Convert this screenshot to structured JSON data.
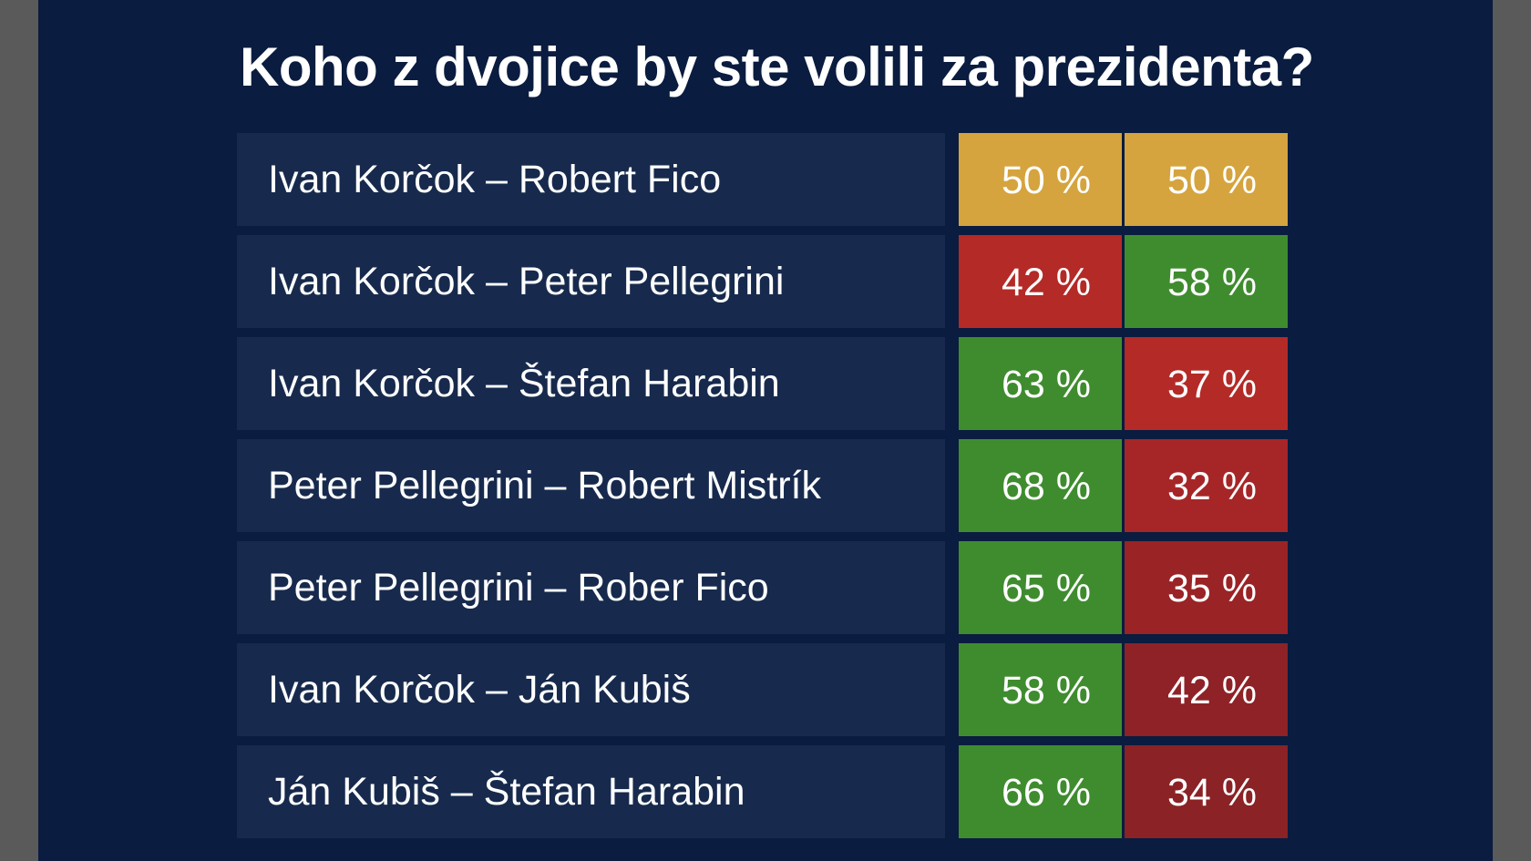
{
  "chart_data": {
    "type": "table",
    "title": "Koho z dvojice by ste volili za prezidenta?",
    "colors": {
      "tie": "#d5a43e",
      "win": "#3f8c2f",
      "lose_strong": "#b42a26",
      "lose": "#9a2326",
      "lose_dark": "#8a2226",
      "label_bg": "#172a4d",
      "background": "#0a1c3f"
    },
    "rows": [
      {
        "pair": "Ivan Korčok – Robert Fico",
        "v1": 50,
        "v2": 50,
        "t1": "50 %",
        "t2": "50 %",
        "c1": "#d5a43e",
        "c2": "#d5a43e"
      },
      {
        "pair": "Ivan Korčok – Peter Pellegrini",
        "v1": 42,
        "v2": 58,
        "t1": "42 %",
        "t2": "58 %",
        "c1": "#b42a26",
        "c2": "#3f8c2f"
      },
      {
        "pair": "Ivan Korčok – Štefan Harabin",
        "v1": 63,
        "v2": 37,
        "t1": "63 %",
        "t2": "37 %",
        "c1": "#3f8c2f",
        "c2": "#b42a26"
      },
      {
        "pair": "Peter Pellegrini – Robert Mistrík",
        "v1": 68,
        "v2": 32,
        "t1": "68 %",
        "t2": "32 %",
        "c1": "#3f8c2f",
        "c2": "#a62628"
      },
      {
        "pair": "Peter Pellegrini – Rober Fico",
        "v1": 65,
        "v2": 35,
        "t1": "65 %",
        "t2": "35 %",
        "c1": "#3f8c2f",
        "c2": "#9a2326"
      },
      {
        "pair": "Ivan Korčok – Ján Kubiš",
        "v1": 58,
        "v2": 42,
        "t1": "58 %",
        "t2": "42 %",
        "c1": "#3f8c2f",
        "c2": "#8e2226"
      },
      {
        "pair": "Ján Kubiš – Štefan Harabin",
        "v1": 66,
        "v2": 34,
        "t1": "66 %",
        "t2": "34 %",
        "c1": "#3f8c2f",
        "c2": "#8a2226"
      }
    ]
  }
}
